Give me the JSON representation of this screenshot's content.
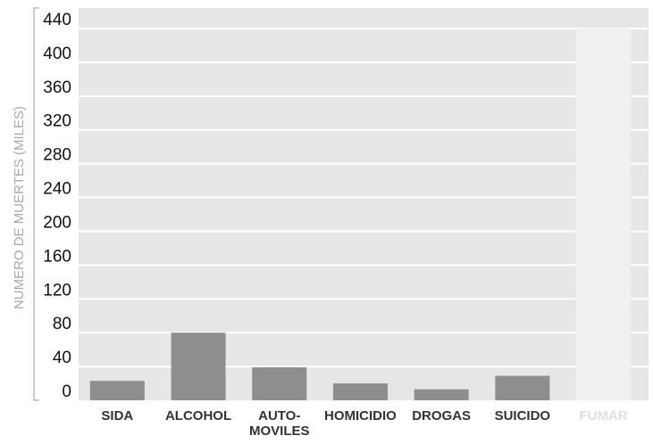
{
  "chart_data": {
    "type": "bar",
    "ylabel": "NUMERO DE MUERTES (MILES)",
    "xlabel": "",
    "title": "",
    "ylim": [
      0,
      440
    ],
    "yticks": [
      0,
      40,
      80,
      120,
      160,
      200,
      240,
      280,
      320,
      360,
      400,
      440
    ],
    "grid": true,
    "categories": [
      {
        "lines": [
          "SIDA"
        ]
      },
      {
        "lines": [
          "ALCOHOL"
        ]
      },
      {
        "lines": [
          "AUTO-",
          "MOVILES"
        ]
      },
      {
        "lines": [
          "HOMICIDIO"
        ]
      },
      {
        "lines": [
          "DROGAS"
        ]
      },
      {
        "lines": [
          "SUICIDO"
        ]
      },
      {
        "lines": [
          "FUMAR"
        ]
      }
    ],
    "values": [
      23,
      80,
      39,
      20,
      13,
      29,
      440
    ],
    "colors": {
      "plot_background": "#e6e6e6",
      "gridline": "#ffffff",
      "bar": "#8e8e8e",
      "highlight_bar": "#f0f0f0",
      "category_label": "#333333",
      "highlight_label": "#e0e0e0",
      "tick_label": "#111111",
      "axis_title": "#a8a8a8",
      "axis_bracket": "#9a9a9a"
    },
    "highlight_index": 6
  }
}
